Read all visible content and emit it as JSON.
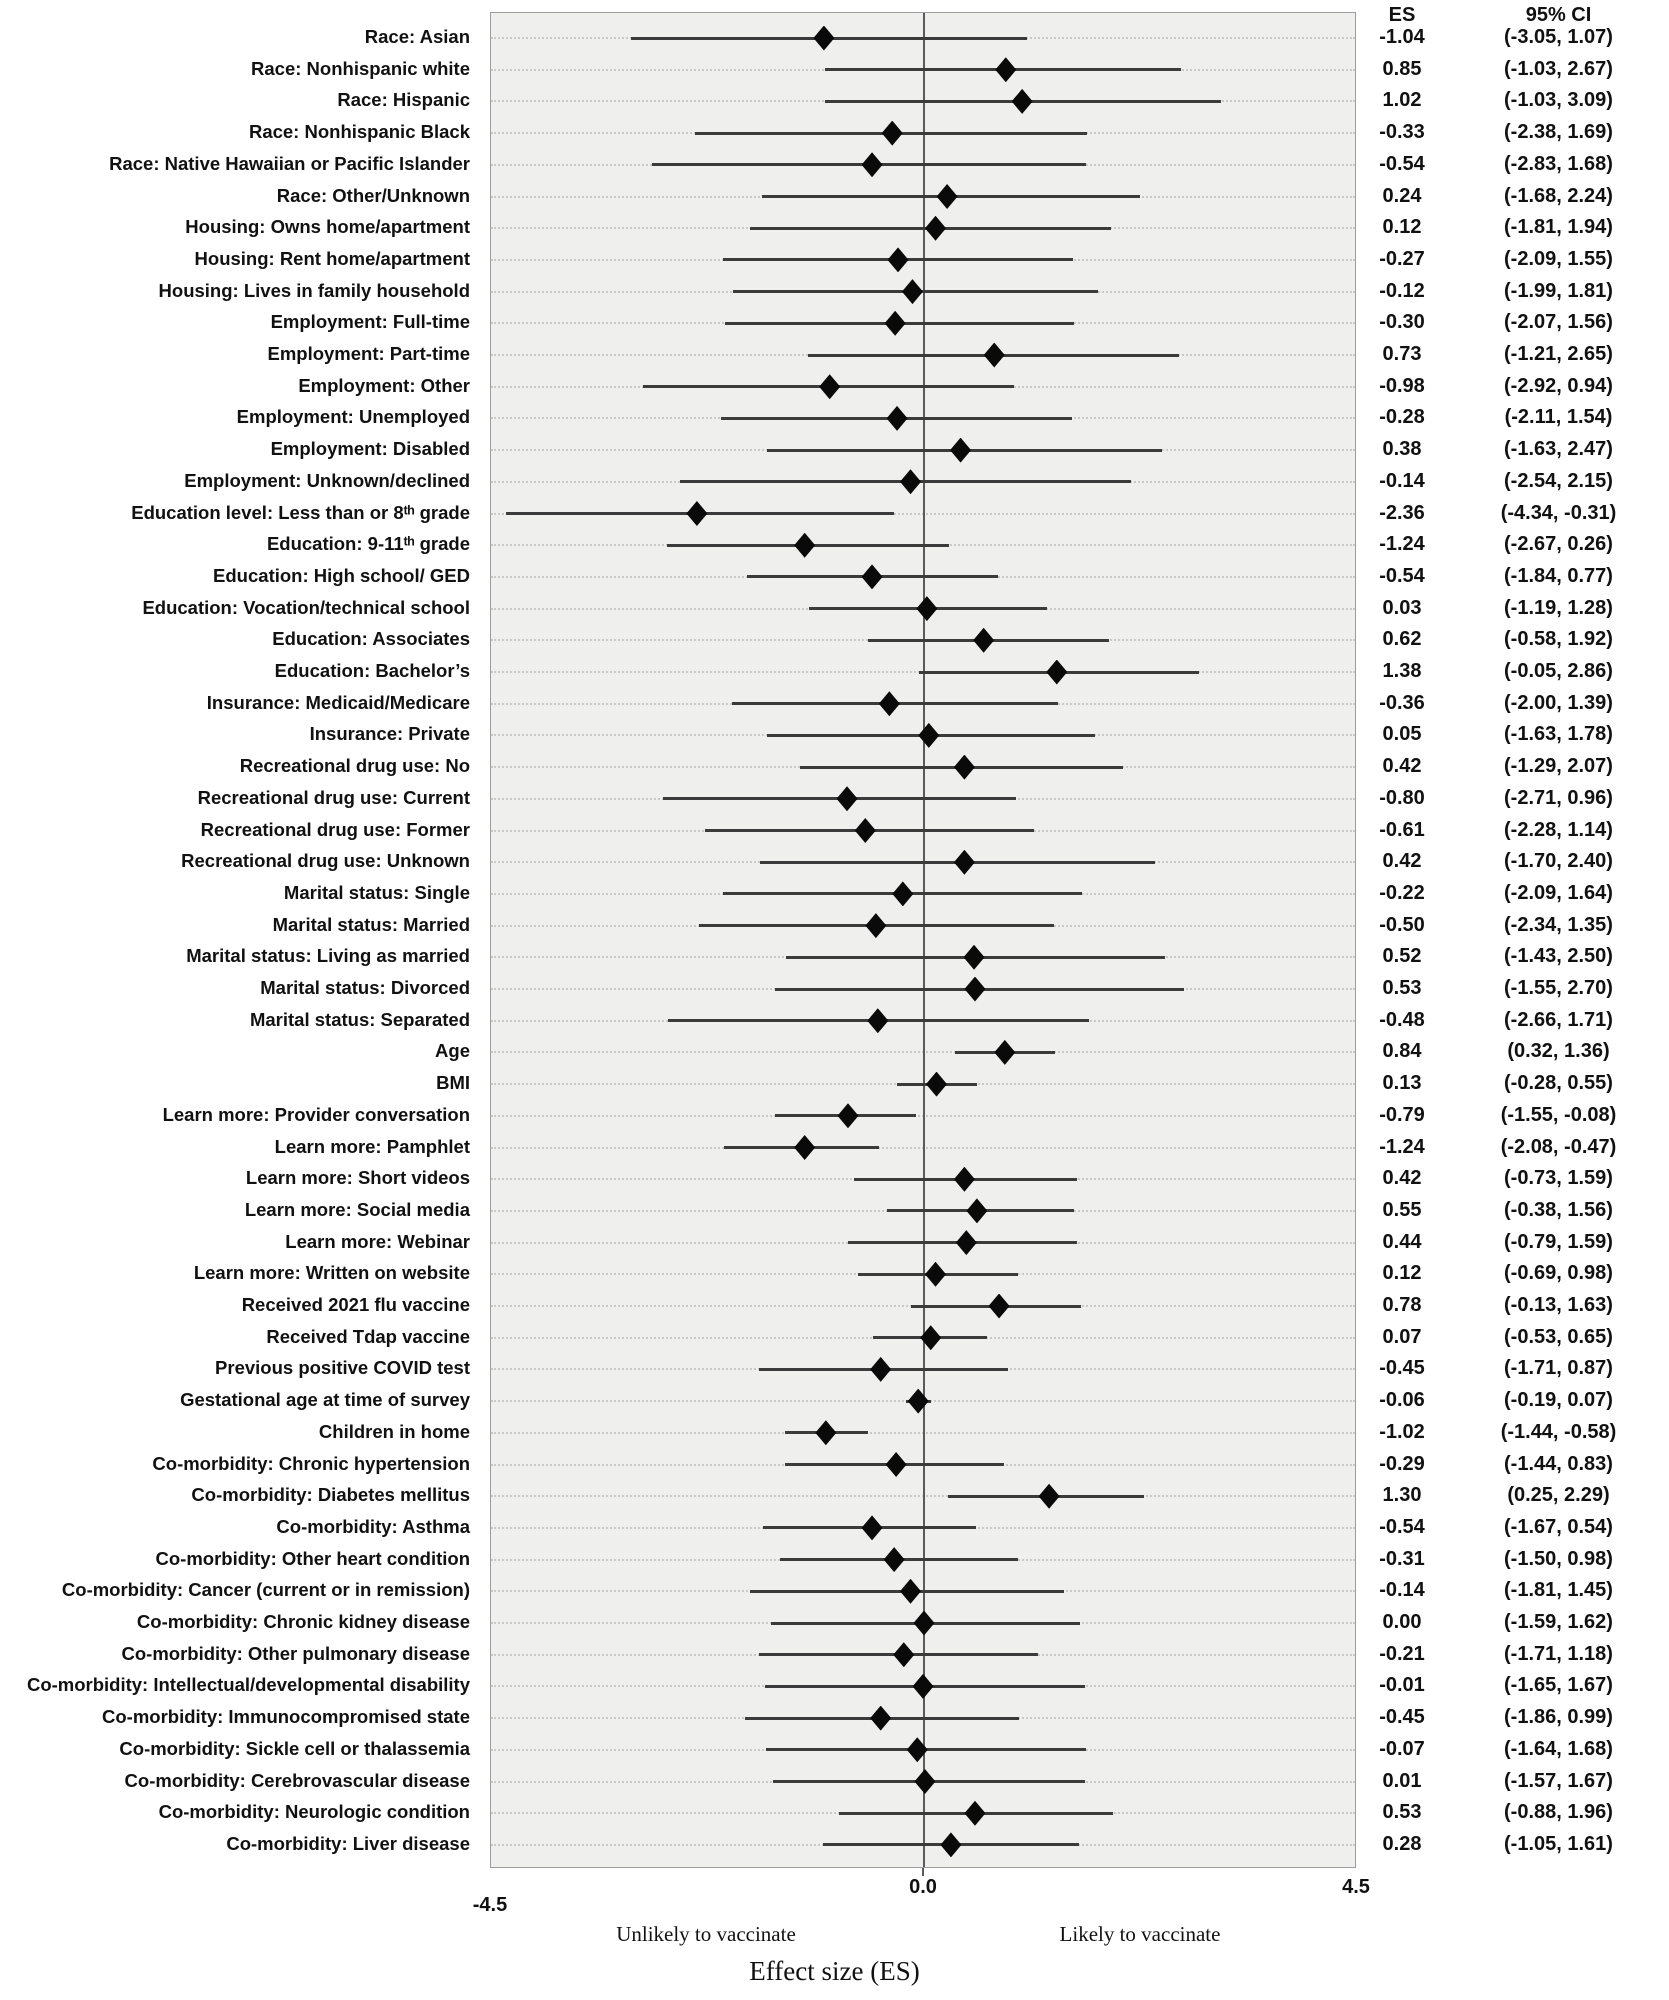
{
  "figure": {
    "headers": {
      "es": "ES",
      "ci": "95% CI"
    },
    "axis": {
      "tick_min": "-4.5",
      "tick_zero": "0.0",
      "tick_max": "4.5"
    },
    "captions": {
      "left": "Unlikely to vaccinate",
      "right": "Likely to vaccinate",
      "xlabel": "Effect size (ES)"
    },
    "colors": {
      "diamond": "#0a0a0a",
      "whisker": "#3b3b3b",
      "plot_background": "#efefee",
      "gridline": "#c9c9c9",
      "zero_line": "#5a5a5a"
    }
  },
  "chart_data": {
    "type": "scatter",
    "subtype": "forest-plot",
    "title": "",
    "xlabel": "Effect size (ES)",
    "ylabel": "",
    "xlim": [
      -4.5,
      4.5
    ],
    "zero_reference_line": 0.0,
    "grid": "dotted-horizontal-per-row",
    "legend_position": "none",
    "columns": [
      "label",
      "ES",
      "95% CI low",
      "95% CI high"
    ],
    "rows": [
      {
        "label": "Race: Asian",
        "es": -1.04,
        "lo": -3.05,
        "hi": 1.07,
        "es_text": "-1.04",
        "ci_text": "(-3.05, 1.07)"
      },
      {
        "label": "Race: Nonhispanic white",
        "es": 0.85,
        "lo": -1.03,
        "hi": 2.67,
        "es_text": "0.85",
        "ci_text": "(-1.03, 2.67)"
      },
      {
        "label": "Race: Hispanic",
        "es": 1.02,
        "lo": -1.03,
        "hi": 3.09,
        "es_text": "1.02",
        "ci_text": "(-1.03, 3.09)"
      },
      {
        "label": "Race: Nonhispanic Black",
        "es": -0.33,
        "lo": -2.38,
        "hi": 1.69,
        "es_text": "-0.33",
        "ci_text": "(-2.38, 1.69)"
      },
      {
        "label": "Race: Native Hawaiian or Pacific Islander",
        "es": -0.54,
        "lo": -2.83,
        "hi": 1.68,
        "es_text": "-0.54",
        "ci_text": "(-2.83, 1.68)"
      },
      {
        "label": "Race: Other/Unknown",
        "es": 0.24,
        "lo": -1.68,
        "hi": 2.24,
        "es_text": "0.24",
        "ci_text": "(-1.68, 2.24)"
      },
      {
        "label": "Housing: Owns home/apartment",
        "es": 0.12,
        "lo": -1.81,
        "hi": 1.94,
        "es_text": "0.12",
        "ci_text": "(-1.81, 1.94)"
      },
      {
        "label": "Housing: Rent home/apartment",
        "es": -0.27,
        "lo": -2.09,
        "hi": 1.55,
        "es_text": "-0.27",
        "ci_text": "(-2.09, 1.55)"
      },
      {
        "label": "Housing: Lives in family household",
        "es": -0.12,
        "lo": -1.99,
        "hi": 1.81,
        "es_text": "-0.12",
        "ci_text": "(-1.99, 1.81)"
      },
      {
        "label": "Employment: Full-time",
        "es": -0.3,
        "lo": -2.07,
        "hi": 1.56,
        "es_text": "-0.30",
        "ci_text": "(-2.07, 1.56)"
      },
      {
        "label": "Employment: Part-time",
        "es": 0.73,
        "lo": -1.21,
        "hi": 2.65,
        "es_text": "0.73",
        "ci_text": "(-1.21, 2.65)"
      },
      {
        "label": "Employment: Other",
        "es": -0.98,
        "lo": -2.92,
        "hi": 0.94,
        "es_text": "-0.98",
        "ci_text": "(-2.92, 0.94)"
      },
      {
        "label": "Employment: Unemployed",
        "es": -0.28,
        "lo": -2.11,
        "hi": 1.54,
        "es_text": "-0.28",
        "ci_text": "(-2.11, 1.54)"
      },
      {
        "label": "Employment: Disabled",
        "es": 0.38,
        "lo": -1.63,
        "hi": 2.47,
        "es_text": "0.38",
        "ci_text": "(-1.63, 2.47)"
      },
      {
        "label": "Employment: Unknown/declined",
        "es": -0.14,
        "lo": -2.54,
        "hi": 2.15,
        "es_text": "-0.14",
        "ci_text": "(-2.54, 2.15)"
      },
      {
        "label": "Education level: Less than or 8ᵗʰ grade",
        "es": -2.36,
        "lo": -4.34,
        "hi": -0.31,
        "es_text": "-2.36",
        "ci_text": "(-4.34, -0.31)"
      },
      {
        "label": "Education: 9-11ᵗʰ grade",
        "es": -1.24,
        "lo": -2.67,
        "hi": 0.26,
        "es_text": "-1.24",
        "ci_text": "(-2.67, 0.26)"
      },
      {
        "label": "Education: High school/ GED",
        "es": -0.54,
        "lo": -1.84,
        "hi": 0.77,
        "es_text": "-0.54",
        "ci_text": "(-1.84, 0.77)"
      },
      {
        "label": "Education: Vocation/technical school",
        "es": 0.03,
        "lo": -1.19,
        "hi": 1.28,
        "es_text": "0.03",
        "ci_text": "(-1.19, 1.28)"
      },
      {
        "label": "Education: Associates",
        "es": 0.62,
        "lo": -0.58,
        "hi": 1.92,
        "es_text": "0.62",
        "ci_text": "(-0.58, 1.92)"
      },
      {
        "label": "Education: Bachelor’s",
        "es": 1.38,
        "lo": -0.05,
        "hi": 2.86,
        "es_text": "1.38",
        "ci_text": "(-0.05, 2.86)"
      },
      {
        "label": "Insurance: Medicaid/Medicare",
        "es": -0.36,
        "lo": -2.0,
        "hi": 1.39,
        "es_text": "-0.36",
        "ci_text": "(-2.00, 1.39)"
      },
      {
        "label": "Insurance: Private",
        "es": 0.05,
        "lo": -1.63,
        "hi": 1.78,
        "es_text": "0.05",
        "ci_text": "(-1.63, 1.78)"
      },
      {
        "label": "Recreational drug use: No",
        "es": 0.42,
        "lo": -1.29,
        "hi": 2.07,
        "es_text": "0.42",
        "ci_text": "(-1.29, 2.07)"
      },
      {
        "label": "Recreational drug use: Current",
        "es": -0.8,
        "lo": -2.71,
        "hi": 0.96,
        "es_text": "-0.80",
        "ci_text": "(-2.71, 0.96)"
      },
      {
        "label": "Recreational drug use: Former",
        "es": -0.61,
        "lo": -2.28,
        "hi": 1.14,
        "es_text": "-0.61",
        "ci_text": "(-2.28, 1.14)"
      },
      {
        "label": "Recreational drug use: Unknown",
        "es": 0.42,
        "lo": -1.7,
        "hi": 2.4,
        "es_text": "0.42",
        "ci_text": "(-1.70, 2.40)"
      },
      {
        "label": "Marital status: Single",
        "es": -0.22,
        "lo": -2.09,
        "hi": 1.64,
        "es_text": "-0.22",
        "ci_text": "(-2.09, 1.64)"
      },
      {
        "label": "Marital status: Married",
        "es": -0.5,
        "lo": -2.34,
        "hi": 1.35,
        "es_text": "-0.50",
        "ci_text": "(-2.34, 1.35)"
      },
      {
        "label": "Marital status: Living as married",
        "es": 0.52,
        "lo": -1.43,
        "hi": 2.5,
        "es_text": "0.52",
        "ci_text": "(-1.43, 2.50)"
      },
      {
        "label": "Marital status: Divorced",
        "es": 0.53,
        "lo": -1.55,
        "hi": 2.7,
        "es_text": "0.53",
        "ci_text": "(-1.55, 2.70)"
      },
      {
        "label": "Marital status: Separated",
        "es": -0.48,
        "lo": -2.66,
        "hi": 1.71,
        "es_text": "-0.48",
        "ci_text": "(-2.66, 1.71)"
      },
      {
        "label": "Age",
        "es": 0.84,
        "lo": 0.32,
        "hi": 1.36,
        "es_text": "0.84",
        "ci_text": "(0.32, 1.36)"
      },
      {
        "label": "BMI",
        "es": 0.13,
        "lo": -0.28,
        "hi": 0.55,
        "es_text": "0.13",
        "ci_text": "(-0.28, 0.55)"
      },
      {
        "label": "Learn more: Provider conversation",
        "es": -0.79,
        "lo": -1.55,
        "hi": -0.08,
        "es_text": "-0.79",
        "ci_text": "(-1.55, -0.08)"
      },
      {
        "label": "Learn more: Pamphlet",
        "es": -1.24,
        "lo": -2.08,
        "hi": -0.47,
        "es_text": "-1.24",
        "ci_text": "(-2.08, -0.47)"
      },
      {
        "label": "Learn more: Short videos",
        "es": 0.42,
        "lo": -0.73,
        "hi": 1.59,
        "es_text": "0.42",
        "ci_text": "(-0.73, 1.59)"
      },
      {
        "label": "Learn more: Social media",
        "es": 0.55,
        "lo": -0.38,
        "hi": 1.56,
        "es_text": "0.55",
        "ci_text": "(-0.38, 1.56)"
      },
      {
        "label": "Learn more: Webinar",
        "es": 0.44,
        "lo": -0.79,
        "hi": 1.59,
        "es_text": "0.44",
        "ci_text": "(-0.79, 1.59)"
      },
      {
        "label": "Learn more: Written on website",
        "es": 0.12,
        "lo": -0.69,
        "hi": 0.98,
        "es_text": "0.12",
        "ci_text": "(-0.69, 0.98)"
      },
      {
        "label": "Received 2021 flu vaccine",
        "es": 0.78,
        "lo": -0.13,
        "hi": 1.63,
        "es_text": "0.78",
        "ci_text": "(-0.13, 1.63)"
      },
      {
        "label": "Received Tdap vaccine",
        "es": 0.07,
        "lo": -0.53,
        "hi": 0.65,
        "es_text": "0.07",
        "ci_text": "(-0.53, 0.65)"
      },
      {
        "label": "Previous positive COVID test",
        "es": -0.45,
        "lo": -1.71,
        "hi": 0.87,
        "es_text": "-0.45",
        "ci_text": "(-1.71, 0.87)"
      },
      {
        "label": "Gestational age at time of survey",
        "es": -0.06,
        "lo": -0.19,
        "hi": 0.07,
        "es_text": "-0.06",
        "ci_text": "(-0.19, 0.07)"
      },
      {
        "label": "Children in home",
        "es": -1.02,
        "lo": -1.44,
        "hi": -0.58,
        "es_text": "-1.02",
        "ci_text": "(-1.44, -0.58)"
      },
      {
        "label": "Co-morbidity: Chronic hypertension",
        "es": -0.29,
        "lo": -1.44,
        "hi": 0.83,
        "es_text": "-0.29",
        "ci_text": "(-1.44, 0.83)"
      },
      {
        "label": "Co-morbidity: Diabetes mellitus",
        "es": 1.3,
        "lo": 0.25,
        "hi": 2.29,
        "es_text": "1.30",
        "ci_text": "(0.25, 2.29)"
      },
      {
        "label": "Co-morbidity: Asthma",
        "es": -0.54,
        "lo": -1.67,
        "hi": 0.54,
        "es_text": "-0.54",
        "ci_text": "(-1.67, 0.54)"
      },
      {
        "label": "Co-morbidity: Other heart condition",
        "es": -0.31,
        "lo": -1.5,
        "hi": 0.98,
        "es_text": "-0.31",
        "ci_text": "(-1.50, 0.98)"
      },
      {
        "label": "Co-morbidity: Cancer (current or in remission)",
        "es": -0.14,
        "lo": -1.81,
        "hi": 1.45,
        "es_text": "-0.14",
        "ci_text": "(-1.81, 1.45)"
      },
      {
        "label": "Co-morbidity: Chronic kidney disease",
        "es": 0.0,
        "lo": -1.59,
        "hi": 1.62,
        "es_text": "0.00",
        "ci_text": "(-1.59, 1.62)"
      },
      {
        "label": "Co-morbidity: Other pulmonary disease",
        "es": -0.21,
        "lo": -1.71,
        "hi": 1.18,
        "es_text": "-0.21",
        "ci_text": "(-1.71, 1.18)"
      },
      {
        "label": "Co-morbidity: Intellectual/developmental disability",
        "es": -0.01,
        "lo": -1.65,
        "hi": 1.67,
        "es_text": "-0.01",
        "ci_text": "(-1.65, 1.67)"
      },
      {
        "label": "Co-morbidity: Immunocompromised state",
        "es": -0.45,
        "lo": -1.86,
        "hi": 0.99,
        "es_text": "-0.45",
        "ci_text": "(-1.86, 0.99)"
      },
      {
        "label": "Co-morbidity: Sickle cell or thalassemia",
        "es": -0.07,
        "lo": -1.64,
        "hi": 1.68,
        "es_text": "-0.07",
        "ci_text": "(-1.64, 1.68)"
      },
      {
        "label": "Co-morbidity: Cerebrovascular disease",
        "es": 0.01,
        "lo": -1.57,
        "hi": 1.67,
        "es_text": "0.01",
        "ci_text": "(-1.57, 1.67)"
      },
      {
        "label": "Co-morbidity: Neurologic condition",
        "es": 0.53,
        "lo": -0.88,
        "hi": 1.96,
        "es_text": "0.53",
        "ci_text": "(-0.88, 1.96)"
      },
      {
        "label": "Co-morbidity: Liver disease",
        "es": 0.28,
        "lo": -1.05,
        "hi": 1.61,
        "es_text": "0.28",
        "ci_text": "(-1.05, 1.61)"
      }
    ]
  }
}
